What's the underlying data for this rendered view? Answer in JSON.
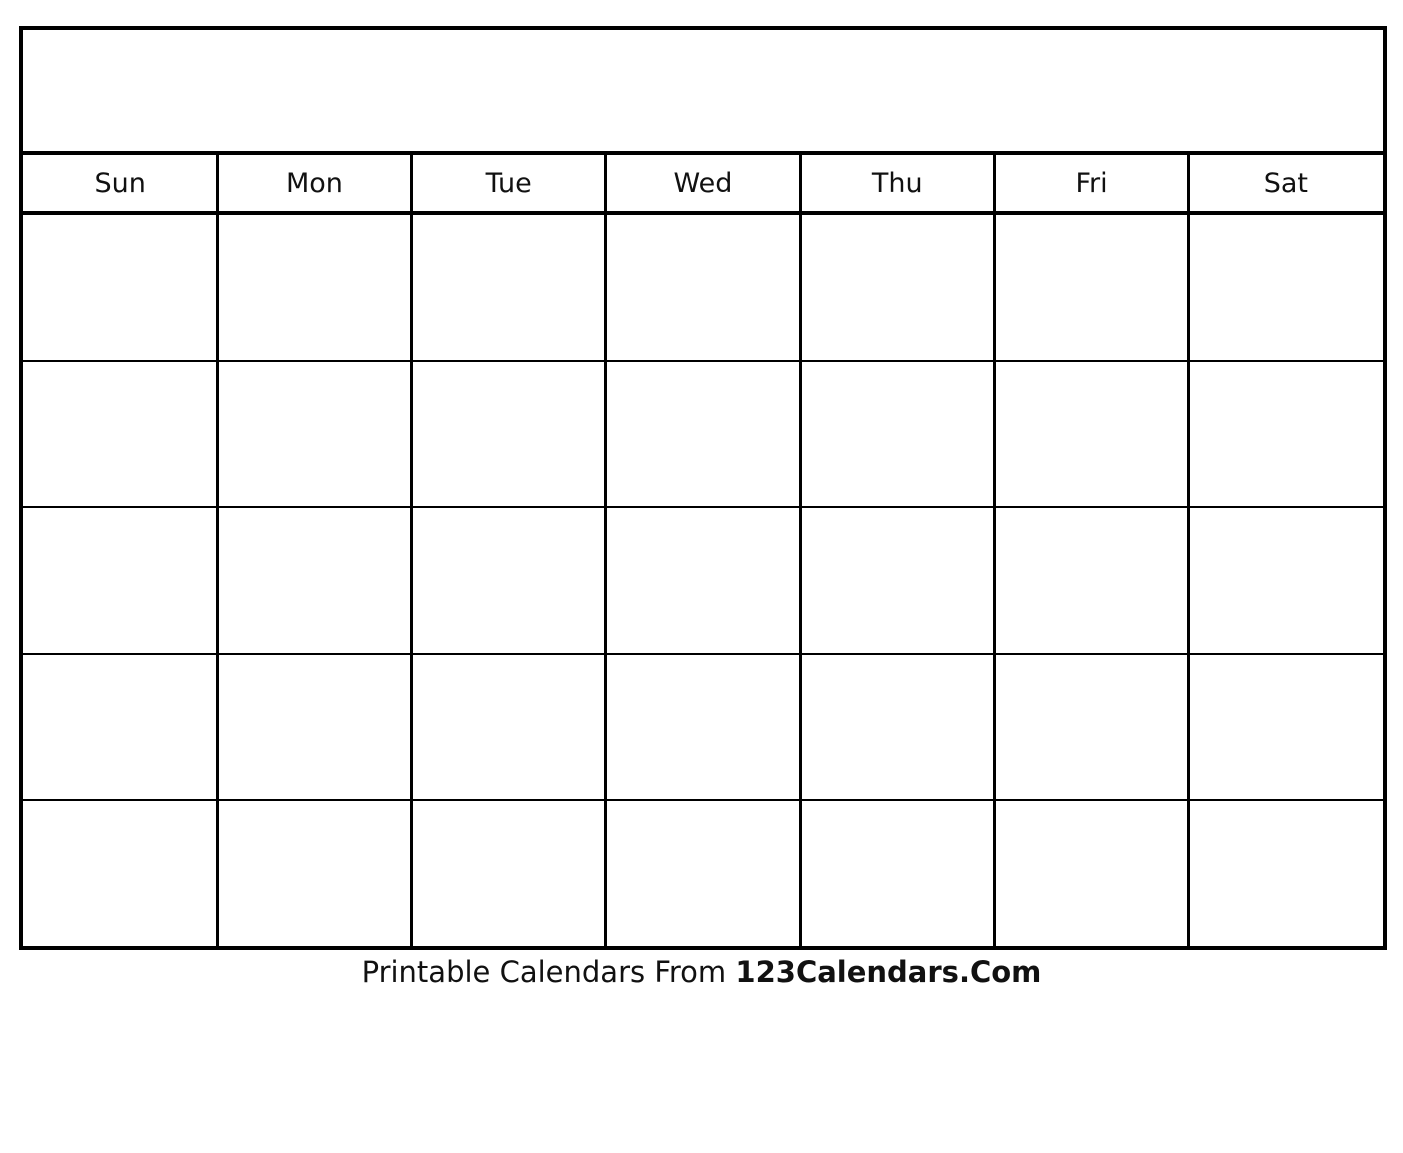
{
  "calendar": {
    "title": "",
    "days": [
      "Sun",
      "Mon",
      "Tue",
      "Wed",
      "Thu",
      "Fri",
      "Sat"
    ],
    "week_rows": 5
  },
  "footer": {
    "prefix": "Printable Calendars From ",
    "brand": "123Calendars.Com"
  }
}
